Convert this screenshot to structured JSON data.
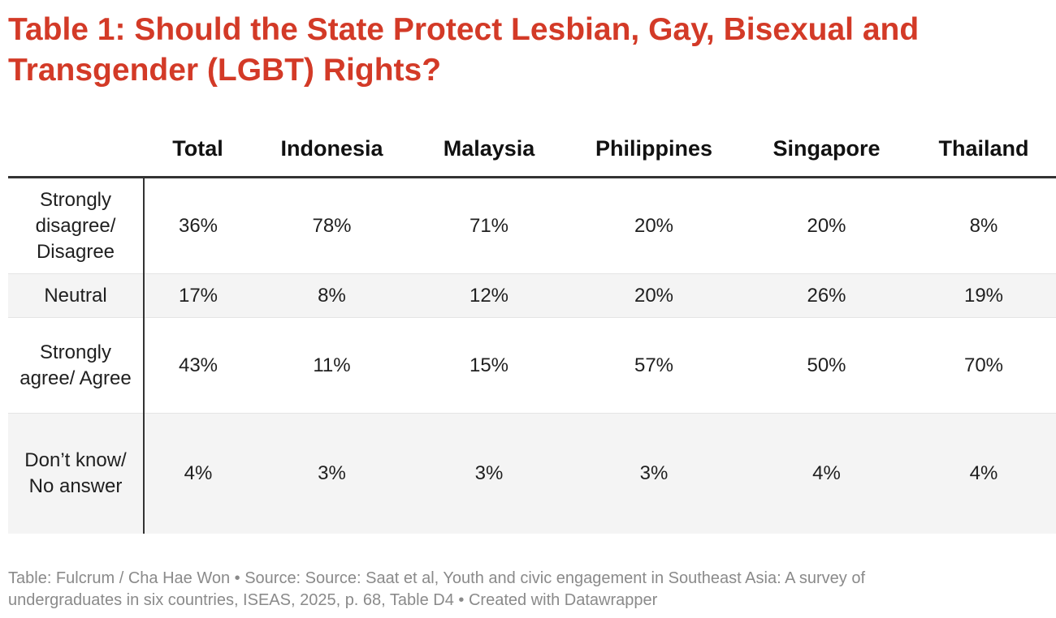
{
  "title": "Table 1: Should the State Protect Lesbian, Gay, Bisexual and Transgender (LGBT) Rights?",
  "chart_data": {
    "type": "table",
    "title": "Table 1: Should the State Protect Lesbian, Gay, Bisexual and Transgender (LGBT) Rights?",
    "columns": [
      "",
      "Total",
      "Indonesia",
      "Malaysia",
      "Philippines",
      "Singapore",
      "Thailand"
    ],
    "rows": [
      {
        "label": "Strongly disagree/ Disagree",
        "values": [
          "36%",
          "78%",
          "71%",
          "20%",
          "20%",
          "8%"
        ]
      },
      {
        "label": "Neutral",
        "values": [
          "17%",
          "8%",
          "12%",
          "20%",
          "26%",
          "19%"
        ]
      },
      {
        "label": "Strongly agree/ Agree",
        "values": [
          "43%",
          "11%",
          "15%",
          "57%",
          "50%",
          "70%"
        ]
      },
      {
        "label": "Don’t know/ No answer",
        "values": [
          "4%",
          "3%",
          "3%",
          "3%",
          "4%",
          "4%"
        ]
      }
    ]
  },
  "footer": "Table: Fulcrum / Cha Hae Won • Source: Source: Saat et al, Youth and civic engagement in Southeast Asia: A survey of undergraduates in six countries, ISEAS, 2025, p. 68, Table D4 • Created with Datawrapper"
}
